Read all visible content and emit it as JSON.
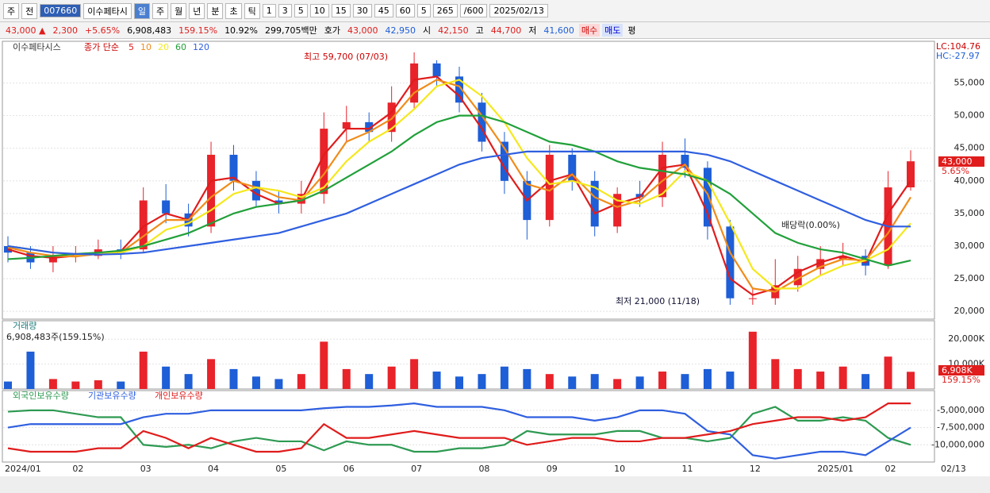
{
  "toolbar": {
    "items": [
      "주",
      "전",
      "007660",
      "이수페타시",
      "일",
      "주",
      "월",
      "년",
      "분",
      "초",
      "틱",
      "1",
      "3",
      "5",
      "10",
      "15",
      "30",
      "45",
      "60",
      "5",
      "265",
      "/600",
      "2025/02/13"
    ]
  },
  "quote": {
    "items": [
      "43,000 ▲",
      "2,300",
      "+5.65%",
      "6,908,483",
      "159.15%",
      "10.92%",
      "299,705백만",
      "호가",
      "43,000",
      "42,950",
      "시",
      "42,150",
      "고",
      "44,700",
      "저",
      "41,600",
      "매수",
      "매도",
      "평"
    ]
  },
  "chart_data": [
    {
      "type": "candlestick",
      "title": "이수페타시스",
      "ma_label": "종가 단순",
      "up_color": "#e8232a",
      "down_color": "#1e5ed6",
      "categories": [
        "2024/01",
        null,
        null,
        "02",
        null,
        null,
        "03",
        null,
        null,
        "04",
        null,
        null,
        "05",
        null,
        null,
        "06",
        null,
        null,
        "07",
        null,
        null,
        "08",
        null,
        null,
        "09",
        null,
        null,
        "10",
        null,
        null,
        "11",
        null,
        null,
        "12",
        null,
        null,
        "2025/01",
        null,
        null,
        "02",
        null
      ],
      "x_end_label": "02/13",
      "open": [
        30000,
        29000,
        27500,
        28500,
        28500,
        29500,
        29500,
        37000,
        35000,
        33000,
        44000,
        40000,
        37000,
        36500,
        38000,
        48000,
        49000,
        47500,
        52000,
        58000,
        56000,
        52000,
        46000,
        40000,
        34000,
        44000,
        40000,
        33000,
        38000,
        37500,
        44000,
        42000,
        33000,
        22000,
        22000,
        24000,
        26500,
        28000,
        28500,
        27000,
        39000
      ],
      "high": [
        31500,
        30000,
        30000,
        30000,
        31000,
        31000,
        39000,
        39500,
        36500,
        46000,
        45500,
        41500,
        38500,
        40000,
        50500,
        51500,
        50500,
        54500,
        59700,
        58500,
        57500,
        53500,
        47500,
        41500,
        45500,
        45000,
        41500,
        39000,
        40000,
        46000,
        46500,
        43000,
        34000,
        23500,
        28000,
        28500,
        30000,
        30500,
        29500,
        41500,
        44700
      ],
      "low": [
        27500,
        26500,
        26000,
        27500,
        28000,
        28000,
        29000,
        33500,
        31500,
        32000,
        38500,
        36000,
        35000,
        35000,
        36500,
        46000,
        46000,
        46000,
        51000,
        54500,
        50500,
        44500,
        38000,
        31000,
        33000,
        38500,
        31500,
        32000,
        36000,
        36000,
        40500,
        31000,
        21000,
        21000,
        21000,
        23000,
        25500,
        27000,
        25500,
        26500,
        38500
      ],
      "close": [
        29000,
        27500,
        28500,
        28500,
        29500,
        29000,
        37000,
        35000,
        33000,
        44000,
        40000,
        37000,
        36500,
        38000,
        48000,
        49000,
        47500,
        52000,
        58000,
        56000,
        52000,
        46000,
        40000,
        34000,
        44000,
        40000,
        33000,
        38000,
        37500,
        44000,
        42000,
        33000,
        22000,
        22000,
        24000,
        26500,
        28000,
        28500,
        27000,
        39000,
        43000
      ],
      "series": [
        {
          "name": "5",
          "color": "#e01c1c",
          "values": [
            29500,
            28500,
            28200,
            28500,
            29000,
            29200,
            33000,
            35000,
            34000,
            40000,
            40500,
            38000,
            36500,
            37000,
            44000,
            48000,
            48000,
            50500,
            55500,
            56000,
            53000,
            48000,
            42000,
            37000,
            40000,
            41000,
            35000,
            36500,
            37500,
            42000,
            42500,
            35000,
            25000,
            22500,
            23500,
            26000,
            27500,
            28500,
            27500,
            35000,
            40000
          ]
        },
        {
          "name": "10",
          "color": "#f08c1a",
          "values": [
            29800,
            29000,
            28500,
            28400,
            28800,
            29000,
            31500,
            34000,
            34000,
            37500,
            40000,
            39000,
            37500,
            37000,
            41000,
            46000,
            47500,
            49500,
            53500,
            55500,
            54500,
            50000,
            45000,
            39500,
            38500,
            41000,
            37500,
            36000,
            37000,
            40000,
            42500,
            38000,
            29000,
            23500,
            23000,
            25000,
            26800,
            28000,
            27800,
            32000,
            37500
          ]
        },
        {
          "name": "20",
          "color": "#f5e81c",
          "values": [
            30000,
            29500,
            29000,
            28700,
            28800,
            29000,
            30000,
            32500,
            33500,
            35500,
            38000,
            39000,
            38500,
            37500,
            39000,
            43000,
            46000,
            48000,
            51000,
            54500,
            55500,
            53000,
            49000,
            43500,
            39500,
            40000,
            39000,
            37000,
            36500,
            38000,
            41500,
            40000,
            33500,
            26500,
            23500,
            23500,
            25500,
            27000,
            27800,
            29500,
            33500
          ]
        },
        {
          "name": "60",
          "color": "#21a03a",
          "values": [
            28000,
            28200,
            28500,
            28800,
            29000,
            29300,
            30000,
            31000,
            32000,
            33500,
            35000,
            36000,
            36500,
            37000,
            38500,
            40500,
            42500,
            44500,
            47000,
            49000,
            50000,
            50000,
            49000,
            47500,
            46000,
            45500,
            44500,
            43000,
            42000,
            41500,
            41000,
            40000,
            38000,
            35000,
            32000,
            30500,
            29500,
            29000,
            28000,
            27000,
            27800
          ]
        },
        {
          "name": "120",
          "color": "#2f5fe0",
          "values": [
            30000,
            29500,
            29000,
            28800,
            28700,
            28800,
            29000,
            29500,
            30000,
            30500,
            31000,
            31500,
            32000,
            33000,
            34000,
            35000,
            36500,
            38000,
            39500,
            41000,
            42500,
            43500,
            44000,
            44500,
            44500,
            44500,
            44500,
            44500,
            44500,
            44500,
            44500,
            44000,
            43000,
            41500,
            40000,
            38500,
            37000,
            35500,
            34000,
            33000,
            33000
          ]
        }
      ],
      "ylim": [
        18800,
        61400
      ],
      "yticks": [
        {
          "value": 20000,
          "label": "20,000"
        },
        {
          "value": 25000,
          "label": "25,000"
        },
        {
          "value": 30000,
          "label": "30,000"
        },
        {
          "value": 35000,
          "label": "35,000"
        },
        {
          "value": 40000,
          "label": "40,000"
        },
        {
          "value": 45000,
          "label": "45,000"
        },
        {
          "value": 50000,
          "label": "50,000"
        },
        {
          "value": 55000,
          "label": "55,000"
        }
      ],
      "grid": true,
      "annotations": [
        "최고 59,700 (07/03)",
        "최저 21,000 (11/18)",
        "배당락(0.00%)"
      ],
      "corner_labels": [
        "LC:104.76",
        "HC:-27.97"
      ],
      "last_label": "43,000",
      "last_change": "5.65%"
    },
    {
      "type": "bar",
      "title": "거래량",
      "subtitle": "6,908,483주(159.15%)",
      "values": [
        3000000,
        15000000,
        4000000,
        3000000,
        3500000,
        3000000,
        15000000,
        9000000,
        6000000,
        12000000,
        8000000,
        5000000,
        4000000,
        6000000,
        19000000,
        8000000,
        6000000,
        9000000,
        12000000,
        7000000,
        5000000,
        6000000,
        9000000,
        8000000,
        6000000,
        5000000,
        6000000,
        4000000,
        5000000,
        7000000,
        6000000,
        8000000,
        7000000,
        23000000,
        12000000,
        8000000,
        7000000,
        9000000,
        6000000,
        13000000,
        6908483
      ],
      "ylim": [
        0,
        27400000
      ],
      "yticks": [
        {
          "value": 10000000,
          "label": "10,000K"
        },
        {
          "value": 20000000,
          "label": "20,000K"
        }
      ],
      "grid": true,
      "last_label": "6,908K",
      "last_pct": "159.15%"
    },
    {
      "type": "line",
      "series": [
        {
          "name": "외국인보유수량",
          "color": "#2e9a52",
          "values": [
            -5200000,
            -5000000,
            -5000000,
            -5500000,
            -6000000,
            -6000000,
            -10000000,
            -10300000,
            -10000000,
            -10500000,
            -9500000,
            -9000000,
            -9500000,
            -9500000,
            -10800000,
            -9500000,
            -10000000,
            -10000000,
            -11000000,
            -11000000,
            -10500000,
            -10500000,
            -10000000,
            -8000000,
            -8500000,
            -8500000,
            -8500000,
            -8000000,
            -8000000,
            -9000000,
            -9000000,
            -9500000,
            -9000000,
            -5500000,
            -4500000,
            -6500000,
            -6500000,
            -6000000,
            -6500000,
            -9000000,
            -10000000
          ]
        },
        {
          "name": "기관보유수량",
          "color": "#2f5fe0",
          "values": [
            -7500000,
            -7000000,
            -7000000,
            -7000000,
            -7000000,
            -7000000,
            -6000000,
            -5500000,
            -5500000,
            -5000000,
            -5000000,
            -5000000,
            -5000000,
            -5000000,
            -4700000,
            -4500000,
            -4500000,
            -4300000,
            -4000000,
            -4500000,
            -4500000,
            -4500000,
            -5000000,
            -6000000,
            -6000000,
            -6000000,
            -6500000,
            -6000000,
            -5000000,
            -5000000,
            -5500000,
            -8000000,
            -8500000,
            -11500000,
            -12000000,
            -11500000,
            -11000000,
            -11000000,
            -11500000,
            -9500000,
            -7500000
          ]
        },
        {
          "name": "개인보유수량",
          "color": "#e01c1c",
          "values": [
            -10500000,
            -11000000,
            -11000000,
            -11000000,
            -10500000,
            -10500000,
            -8000000,
            -9000000,
            -10500000,
            -9000000,
            -10000000,
            -11000000,
            -11000000,
            -10500000,
            -7000000,
            -9000000,
            -9000000,
            -8500000,
            -8000000,
            -8500000,
            -9000000,
            -9000000,
            -9000000,
            -10000000,
            -9500000,
            -9000000,
            -9000000,
            -9500000,
            -9500000,
            -9000000,
            -9000000,
            -8500000,
            -8000000,
            -7000000,
            -6500000,
            -6000000,
            -6000000,
            -6500000,
            -6000000,
            -4000000,
            -4000000
          ]
        }
      ],
      "ylim": [
        -12500000,
        -2140000
      ],
      "yticks": [
        {
          "value": -5000000,
          "label": "-5,000,000"
        },
        {
          "value": -7500000,
          "label": "-7,500,000"
        },
        {
          "value": -10000000,
          "label": "-10,000,000"
        }
      ],
      "grid": true
    }
  ]
}
